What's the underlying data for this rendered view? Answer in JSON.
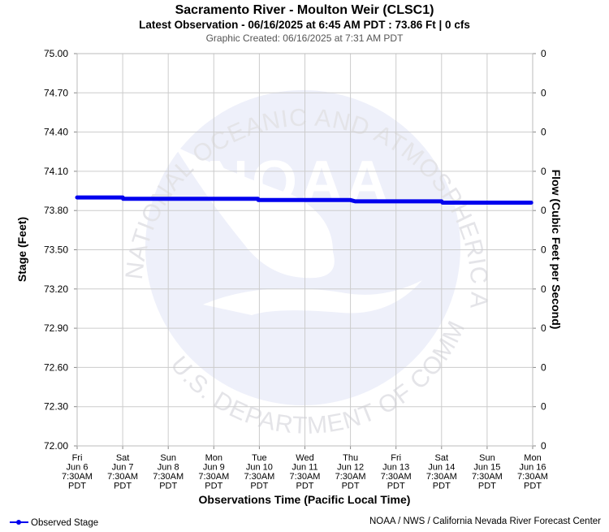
{
  "header": {
    "title": "Sacramento River - Moulton Weir (CLSC1)",
    "subtitle": "Latest Observation - 06/16/2025 at 6:45 AM PDT : 73.86 Ft | 0 cfs",
    "created": "Graphic Created: 06/16/2025 at 7:31 AM PDT"
  },
  "footer": {
    "legend_label": "Observed Stage",
    "credit": "NOAA / NWS / California Nevada River Forecast Center"
  },
  "watermark": {
    "logo_text": "NOAA",
    "ring_text": "NATIONAL OCEANIC AND ATMOSPHERIC ADMINISTRATION",
    "bottom_text": "U.S. DEPARTMENT OF COMMERCE"
  },
  "colors": {
    "series": "#0000ee",
    "grid": "#cccccc",
    "watermark": "#eef0fa",
    "watermark_text": "#e4e4e8",
    "text": "#000000",
    "muted": "#555555"
  },
  "chart_data": {
    "type": "line",
    "title": "Sacramento River - Moulton Weir (CLSC1)",
    "ylabel": "Stage (Feet)",
    "ylabel_right": "Flow (Cubic Feet per Second)",
    "xlabel": "Observations Time (Pacific Local Time)",
    "ylim": [
      72.0,
      75.0
    ],
    "yticks": [
      "72.00",
      "72.30",
      "72.60",
      "72.90",
      "73.20",
      "73.50",
      "73.80",
      "74.10",
      "74.40",
      "74.70",
      "75.00"
    ],
    "yticks_right": [
      "0",
      "0",
      "0",
      "0",
      "0",
      "0",
      "0",
      "0",
      "0",
      "0",
      "0"
    ],
    "xticks": [
      [
        "Fri",
        "Jun 6",
        "7:30AM",
        "PDT"
      ],
      [
        "Sat",
        "Jun 7",
        "7:30AM",
        "PDT"
      ],
      [
        "Sun",
        "Jun 8",
        "7:30AM",
        "PDT"
      ],
      [
        "Mon",
        "Jun 9",
        "7:30AM",
        "PDT"
      ],
      [
        "Tue",
        "Jun 10",
        "7:30AM",
        "PDT"
      ],
      [
        "Wed",
        "Jun 11",
        "7:30AM",
        "PDT"
      ],
      [
        "Thu",
        "Jun 12",
        "7:30AM",
        "PDT"
      ],
      [
        "Fri",
        "Jun 13",
        "7:30AM",
        "PDT"
      ],
      [
        "Sat",
        "Jun 14",
        "7:30AM",
        "PDT"
      ],
      [
        "Sun",
        "Jun 15",
        "7:30AM",
        "PDT"
      ],
      [
        "Mon",
        "Jun 16",
        "7:30AM",
        "PDT"
      ]
    ],
    "grid": true,
    "legend_position": "bottom-left",
    "series": [
      {
        "name": "Observed Stage",
        "x": [
          "2025-06-06 07:30",
          "2025-06-07 07:30",
          "2025-06-07 07:45",
          "2025-06-08 07:30",
          "2025-06-09 07:30",
          "2025-06-10 06:45",
          "2025-06-10 07:00",
          "2025-06-11 07:30",
          "2025-06-12 07:30",
          "2025-06-12 10:00",
          "2025-06-13 07:30",
          "2025-06-14 07:30",
          "2025-06-14 08:00",
          "2025-06-15 07:30",
          "2025-06-16 06:45"
        ],
        "y": [
          73.9,
          73.9,
          73.89,
          73.89,
          73.89,
          73.89,
          73.88,
          73.88,
          73.88,
          73.87,
          73.87,
          73.87,
          73.86,
          73.86,
          73.86
        ]
      }
    ]
  }
}
